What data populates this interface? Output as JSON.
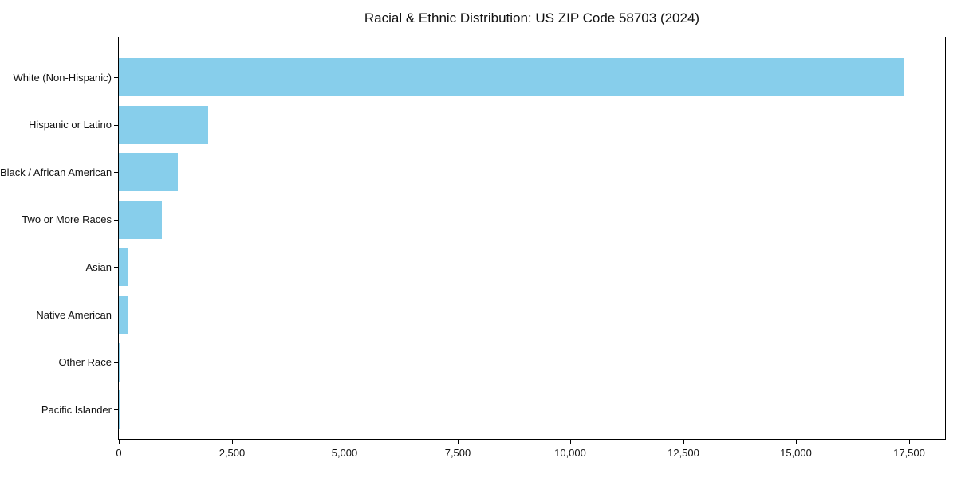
{
  "chart_data": {
    "type": "bar",
    "orientation": "horizontal",
    "title": "Racial & Ethnic Distribution: US ZIP Code 58703 (2024)",
    "categories": [
      "White (Non-Hispanic)",
      "Hispanic or Latino",
      "Black / African American",
      "Two or More Races",
      "Asian",
      "Native American",
      "Other Race",
      "Pacific Islander"
    ],
    "values": [
      17400,
      1975,
      1305,
      950,
      215,
      200,
      20,
      5
    ],
    "bar_color": "#87CEEB",
    "xlabel": "",
    "ylabel": "",
    "xlim": [
      0,
      18300
    ],
    "xticks": [
      0,
      2500,
      5000,
      7500,
      10000,
      12500,
      15000,
      17500
    ],
    "xticklabels": [
      "0",
      "2,500",
      "5,000",
      "7,500",
      "10,000",
      "12,500",
      "15,000",
      "17,500"
    ],
    "grid": false,
    "legend_position": "none",
    "background_color": "#ffffff",
    "spine_color": "#000000",
    "text_color": "#111111"
  }
}
